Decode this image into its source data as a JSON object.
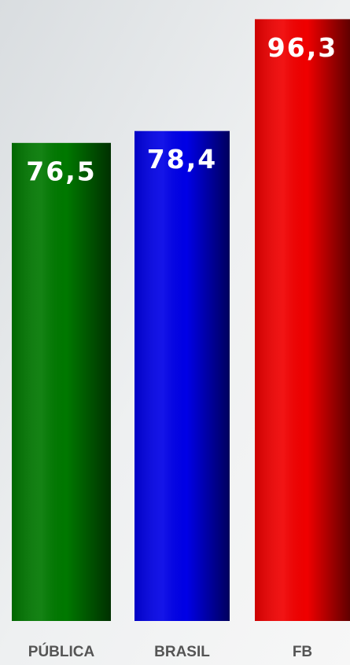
{
  "chart_data": {
    "type": "bar",
    "categories": [
      "PÚBLICA",
      "BRASIL",
      "FB"
    ],
    "values": [
      76.5,
      78.4,
      96.3
    ],
    "value_labels": [
      "76,5",
      "78,4",
      "96,3"
    ],
    "colors": [
      "#007800",
      "#0000e6",
      "#f00000"
    ]
  }
}
